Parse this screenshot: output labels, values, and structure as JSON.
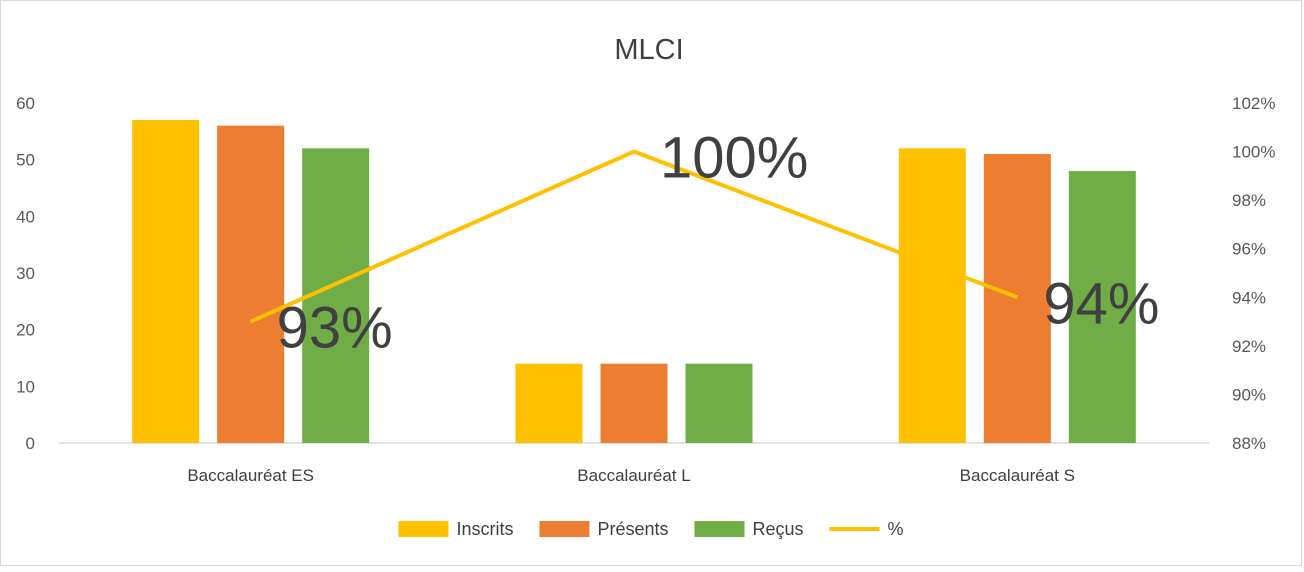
{
  "chart_data": {
    "type": "bar",
    "title": "MLCI",
    "categories": [
      "Baccalauréat ES",
      "Baccalauréat L",
      "Baccalauréat S"
    ],
    "series": [
      {
        "name": "Inscrits",
        "type": "bar",
        "axis": "left",
        "color": "#FFC000",
        "values": [
          57,
          14,
          52
        ]
      },
      {
        "name": "Présents",
        "type": "bar",
        "axis": "left",
        "color": "#ED7D31",
        "values": [
          56,
          14,
          51
        ]
      },
      {
        "name": "Reçus",
        "type": "bar",
        "axis": "left",
        "color": "#70AD47",
        "values": [
          52,
          14,
          48
        ]
      },
      {
        "name": "%",
        "type": "line",
        "axis": "right",
        "color": "#FFC000",
        "values": [
          0.93,
          1.0,
          0.94
        ],
        "labels": [
          "93%",
          "100%",
          "94%"
        ]
      }
    ],
    "y_left": {
      "min": 0,
      "max": 60,
      "ticks": [
        "0",
        "10",
        "20",
        "30",
        "40",
        "50",
        "60"
      ]
    },
    "y_right": {
      "min": 0.88,
      "max": 1.02,
      "ticks": [
        "88%",
        "90%",
        "92%",
        "94%",
        "96%",
        "98%",
        "100%",
        "102%"
      ]
    },
    "gridlines": false,
    "legend_position": "bottom"
  }
}
